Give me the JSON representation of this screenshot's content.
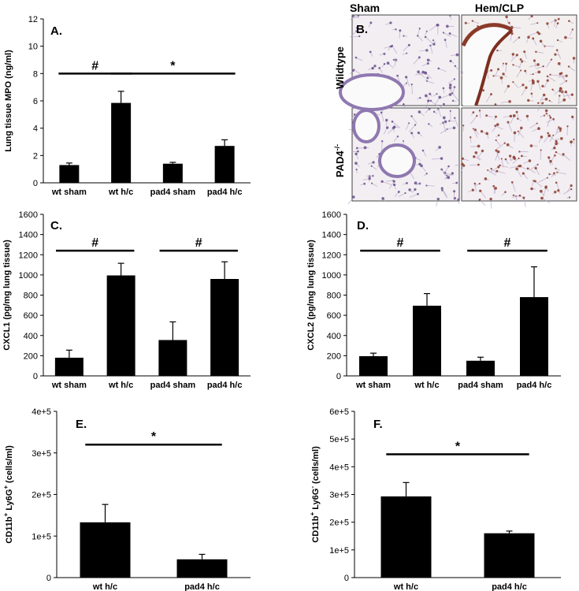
{
  "chart_data": [
    {
      "panel": "A.",
      "type": "bar",
      "categories": [
        "wt sham",
        "wt h/c",
        "pad4 sham",
        "pad4 h/c"
      ],
      "values": [
        1.3,
        5.85,
        1.4,
        2.7
      ],
      "errors": [
        0.15,
        0.85,
        0.1,
        0.45
      ],
      "ylabel": "Lung tissue MPO (ng/ml)",
      "ylim": [
        0,
        12
      ],
      "yticks": [
        "0",
        "2",
        "4",
        "6",
        "8",
        "10",
        "12"
      ],
      "significance": [
        {
          "symbol": "#",
          "from": 0,
          "to": 1,
          "y": 8.0
        },
        {
          "symbol": "*",
          "from": 1,
          "to": 3,
          "y": 8.0
        }
      ]
    },
    {
      "panel": "C.",
      "type": "bar",
      "categories": [
        "wt sham",
        "wt h/c",
        "pad4 sham",
        "pad4 h/c"
      ],
      "values": [
        180,
        995,
        355,
        960
      ],
      "errors": [
        75,
        120,
        180,
        170
      ],
      "ylabel": "CXCL1 (pg/mg lung tissue)",
      "ylim": [
        0,
        1600
      ],
      "yticks": [
        "0",
        "200",
        "400",
        "600",
        "800",
        "1000",
        "1200",
        "1400",
        "1600"
      ],
      "significance": [
        {
          "symbol": "#",
          "from": 0,
          "to": 1,
          "y": 1240
        },
        {
          "symbol": "#",
          "from": 2,
          "to": 3,
          "y": 1240
        }
      ]
    },
    {
      "panel": "D.",
      "type": "bar",
      "categories": [
        "wt sham",
        "wt h/c",
        "pad4 sham",
        "pad4 h/c"
      ],
      "values": [
        195,
        695,
        150,
        780
      ],
      "errors": [
        30,
        120,
        35,
        300
      ],
      "ylabel": "CXCL2 (pg/mg lung tissue)",
      "ylim": [
        0,
        1600
      ],
      "yticks": [
        "0",
        "200",
        "400",
        "600",
        "800",
        "1000",
        "1200",
        "1400",
        "1600"
      ],
      "significance": [
        {
          "symbol": "#",
          "from": 0,
          "to": 1,
          "y": 1240
        },
        {
          "symbol": "#",
          "from": 2,
          "to": 3,
          "y": 1240
        }
      ]
    },
    {
      "panel": "E.",
      "type": "bar",
      "categories": [
        "wt h/c",
        "pad4 h/c"
      ],
      "values": [
        133000,
        44000
      ],
      "errors": [
        43000,
        12000
      ],
      "ylabel_parts": [
        "CD11b",
        "+",
        " Ly6G",
        "+",
        " (cells/ml)"
      ],
      "ylim": [
        0,
        400000
      ],
      "yticks": [
        "0",
        "1e+5",
        "2e+5",
        "3e+5",
        "4e+5"
      ],
      "significance": [
        {
          "symbol": "*",
          "from": 0,
          "to": 1,
          "y": 320000
        }
      ]
    },
    {
      "panel": "F.",
      "type": "bar",
      "categories": [
        "wt h/c",
        "pad4 h/c"
      ],
      "values": [
        293000,
        160000
      ],
      "errors": [
        50000,
        8000
      ],
      "ylabel_parts": [
        "CD11b",
        "+",
        " Ly6G",
        "-",
        " (cells/ml)"
      ],
      "ylim": [
        0,
        600000
      ],
      "yticks": [
        "0",
        "1e+5",
        "2e+5",
        "3e+5",
        "4e+5",
        "5e+5",
        "6e+5"
      ],
      "significance": [
        {
          "symbol": "*",
          "from": 0,
          "to": 1,
          "y": 445000
        }
      ]
    }
  ],
  "histology": {
    "panel": "B.",
    "col_headers": [
      "Sham",
      "Hem/CLP"
    ],
    "row_labels": [
      "Wildtype",
      "PAD4"
    ],
    "row2_sup": "-/-",
    "colors": {
      "background": "#f2eef2",
      "nuclei": "#6a4f8c",
      "stain": "#8b3a2a",
      "tissue": "#b9a5c6"
    }
  }
}
